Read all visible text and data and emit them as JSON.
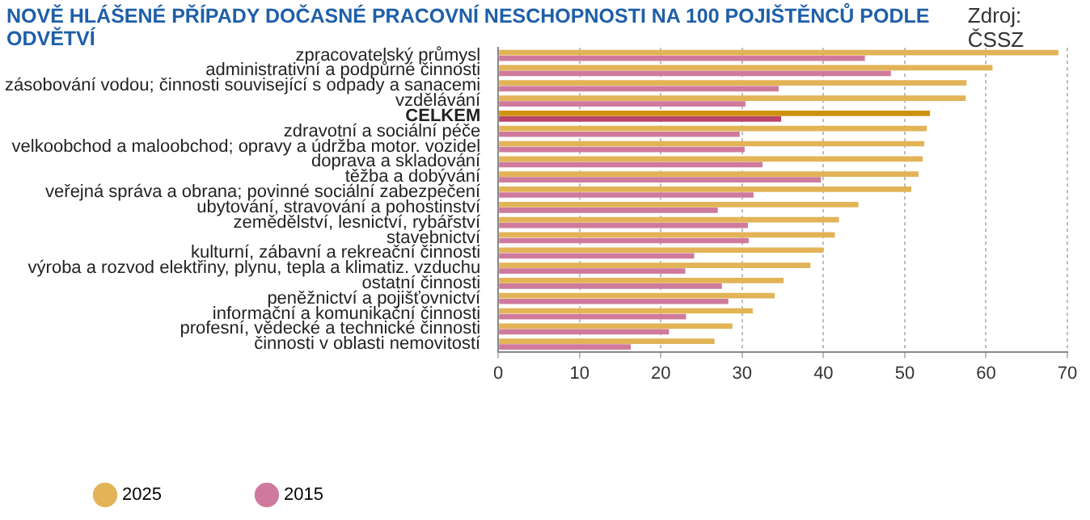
{
  "chart_data": {
    "type": "bar",
    "orientation": "horizontal",
    "title": "NOVĚ HLÁŠENÉ PŘÍPADY DOČASNÉ PRACOVNÍ NESCHOPNOSTI NA 100 POJIŠTĚNCŮ PODLE ODVĚTVÍ",
    "annotations": [
      "Zdroj: ČSSZ"
    ],
    "categories": [
      "zpracovatelský průmysl",
      "administrativní a podpůrné činnosti",
      "zásobování vodou; činnosti související s odpady a sanacemi",
      "vzdělávání",
      "CELKEM",
      "zdravotní a sociální péče",
      "velkoobchod a maloobchod; opravy a údržba motor. vozidel",
      "doprava a skladování",
      "těžba a dobývání",
      "veřejná správa a obrana; povinné sociální zabezpečení",
      "ubytování, stravování a pohostinství",
      "zemědělství, lesnictví, rybářství",
      "stavebnictví",
      "kulturní, zábavní a rekreační činnosti",
      "výroba a rozvod elektřiny, plynu, tepla a klimatiz. vzduchu",
      "ostatní činnosti",
      "peněžnictví a pojišťovnictví",
      "informační a komunikační činnosti",
      "profesní, vědecké a technické činnosti",
      "činnosti v oblasti nemovitostí"
    ],
    "series": [
      {
        "name": "2025",
        "color": "#e2b357",
        "colors": [
          "#e2b357",
          "#e2b357",
          "#e2b357",
          "#e2b357",
          "#cf9110",
          "#e2b357",
          "#e2b357",
          "#e2b357",
          "#e2b357",
          "#e2b357",
          "#e2b357",
          "#e2b357",
          "#e2b357",
          "#e2b357",
          "#e2b357",
          "#e2b357",
          "#e2b357",
          "#e2b357",
          "#e2b357",
          "#e2b357"
        ],
        "values": [
          68.9,
          60.8,
          57.6,
          57.5,
          53.1,
          52.7,
          52.4,
          52.2,
          51.7,
          50.8,
          44.3,
          41.9,
          41.4,
          40.0,
          38.4,
          35.1,
          34.0,
          31.3,
          28.8,
          26.6
        ]
      },
      {
        "name": "2015",
        "color": "#cf7a9c",
        "colors": [
          "#cf7a9c",
          "#cf7a9c",
          "#cf7a9c",
          "#cf7a9c",
          "#b8456a",
          "#cf7a9c",
          "#cf7a9c",
          "#cf7a9c",
          "#cf7a9c",
          "#cf7a9c",
          "#cf7a9c",
          "#cf7a9c",
          "#cf7a9c",
          "#cf7a9c",
          "#cf7a9c",
          "#cf7a9c",
          "#cf7a9c",
          "#cf7a9c",
          "#cf7a9c",
          "#cf7a9c"
        ],
        "values": [
          45.1,
          48.3,
          34.5,
          30.4,
          34.8,
          29.7,
          30.3,
          32.5,
          39.7,
          31.4,
          27.0,
          30.7,
          30.8,
          24.1,
          23.0,
          27.5,
          28.3,
          23.1,
          21.0,
          16.3
        ]
      }
    ],
    "xlim": [
      0,
      70
    ],
    "xticks": [
      0,
      10,
      20,
      30,
      40,
      50,
      60,
      70
    ],
    "grid": "x",
    "legend": "bottom left"
  }
}
